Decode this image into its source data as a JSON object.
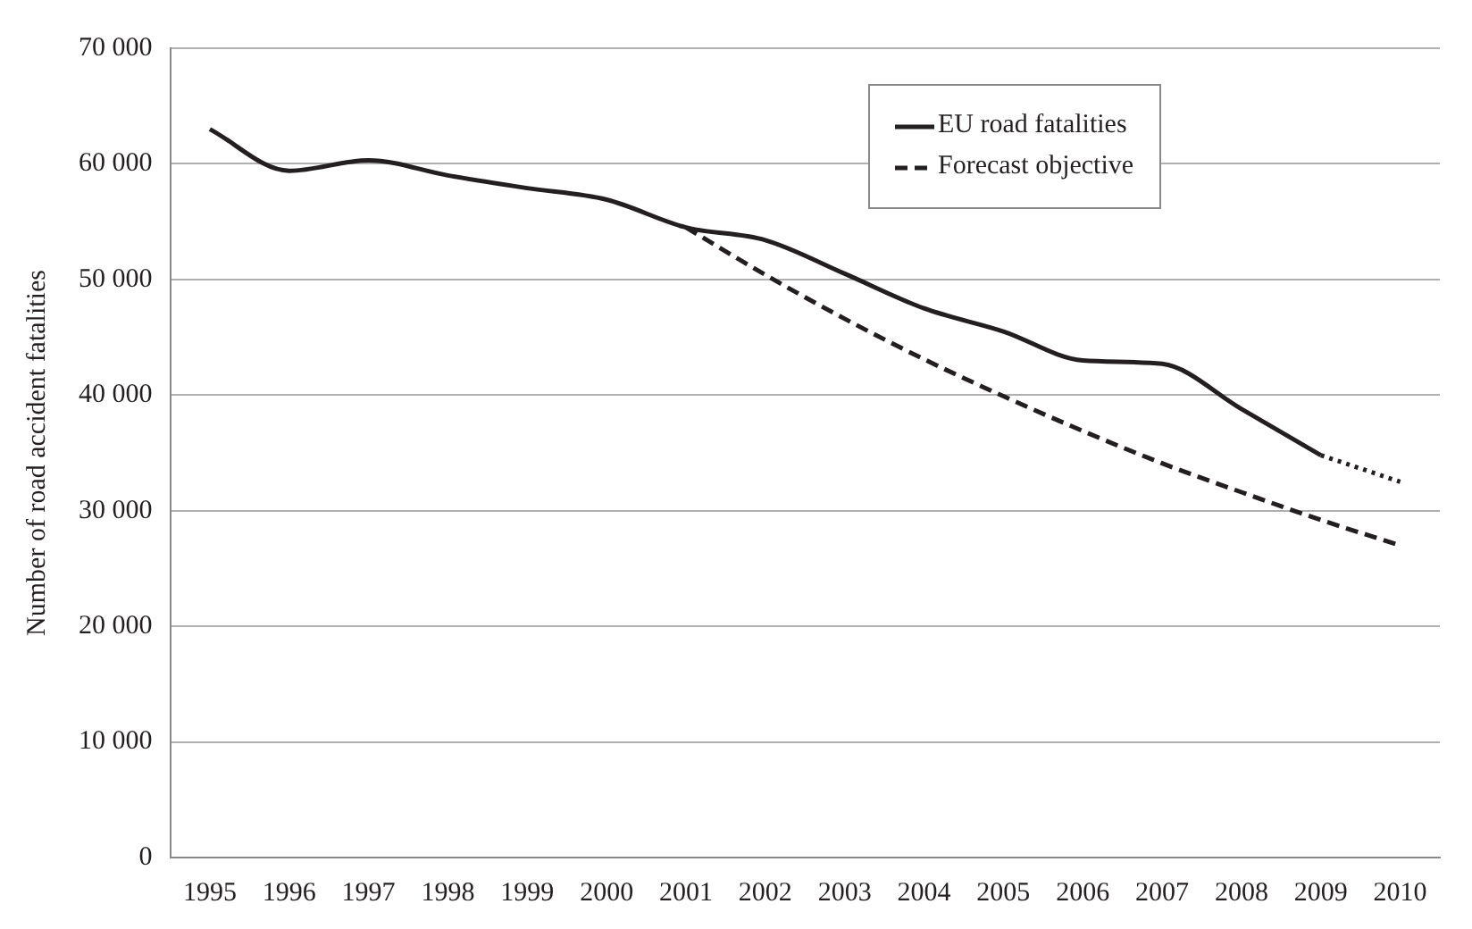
{
  "chart_data": {
    "type": "line",
    "ylabel": "Number of road accident fatalities",
    "categories": [
      "1995",
      "1996",
      "1997",
      "1998",
      "1999",
      "2000",
      "2001",
      "2002",
      "2003",
      "2004",
      "2005",
      "2006",
      "2007",
      "2008",
      "2009",
      "2010"
    ],
    "series": [
      {
        "name": "EU road fatalities",
        "color": "#231f20",
        "line_style": "solid",
        "values": [
          63000,
          59400,
          60300,
          59000,
          57900,
          56900,
          54500,
          53400,
          50500,
          47500,
          45500,
          43000,
          42700,
          38800,
          34800,
          null
        ]
      },
      {
        "name": "Forecast objective",
        "color": "#231f20",
        "line_style": "dashed",
        "values": [
          null,
          null,
          null,
          null,
          null,
          null,
          54500,
          50400,
          46600,
          43100,
          39900,
          36900,
          34100,
          31600,
          29200,
          27000
        ]
      },
      {
        "color": "#231f20",
        "line_style": "dotted",
        "values": [
          null,
          null,
          null,
          null,
          null,
          null,
          null,
          null,
          null,
          null,
          null,
          null,
          null,
          null,
          34800,
          32500
        ]
      }
    ],
    "ylim": [
      0,
      70000
    ],
    "yticks": [
      {
        "value": 0,
        "label": "0"
      },
      {
        "value": 10000,
        "label": "10 000"
      },
      {
        "value": 20000,
        "label": "20 000"
      },
      {
        "value": 30000,
        "label": "30 000"
      },
      {
        "value": 40000,
        "label": "40 000"
      },
      {
        "value": 50000,
        "label": "50 000"
      },
      {
        "value": 60000,
        "label": "60 000"
      },
      {
        "value": 70000,
        "label": "70 000"
      }
    ],
    "grid": "y",
    "legend": "top right",
    "marker": "none"
  }
}
